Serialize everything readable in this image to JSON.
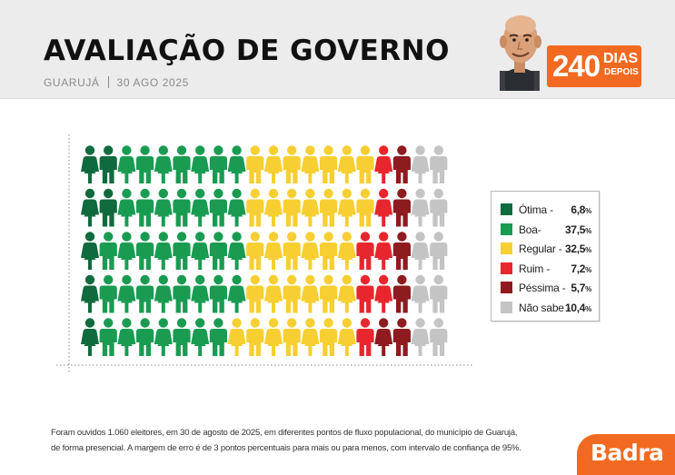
{
  "header": {
    "title": "AVALIAÇÃO DE GOVERNO",
    "location": "GUARUJÁ",
    "date": "30 AGO 2025",
    "badge": {
      "number": "240",
      "line1": "DIAS",
      "line2": "DEPOIS"
    }
  },
  "chart_data": {
    "type": "pictogram",
    "title": "AVALIAÇÃO DE GOVERNO",
    "grid": {
      "columns": 20,
      "rows": 5
    },
    "categories": [
      "Ótima",
      "Boa",
      "Regular",
      "Ruim",
      "Péssima",
      "Não sabe"
    ],
    "legend": [
      {
        "label": "Ótima -",
        "value": "6,8",
        "unit": "%",
        "pct": 6.8,
        "icons": 7,
        "color": "#0f6b3d"
      },
      {
        "label": "Boa-",
        "value": "37,5",
        "unit": "%",
        "pct": 37.5,
        "icons": 37,
        "color": "#1a9b52"
      },
      {
        "label": "Regular -",
        "value": "32,5",
        "unit": "%",
        "pct": 32.5,
        "icons": 33,
        "color": "#f7cf32"
      },
      {
        "label": "Ruim -",
        "value": "7,2",
        "unit": "%",
        "pct": 7.2,
        "icons": 7,
        "color": "#e8262d"
      },
      {
        "label": "Péssima -",
        "value": "5,7",
        "unit": "%",
        "pct": 5.7,
        "icons": 6,
        "color": "#8e1b1f"
      },
      {
        "label": "Não sabe -",
        "value": "10,4",
        "unit": "%",
        "pct": 10.4,
        "icons": 10,
        "color": "#c4c4c4"
      }
    ],
    "grid_lines": "dotted-axes",
    "legend_position": "right"
  },
  "footnote": {
    "line1": "Foram ouvidos 1.060 eleitores, em 30 de agosto de 2025, em diferentes pontos de fluxo populacional, do município de Guarujá,",
    "line2": "de forma presencial. A margem de erro é de 3 pontos percentuais para mais ou para menos, com intervalo de confiança de 95%."
  },
  "brand": {
    "name": "Badra",
    "color": "#f26a21"
  }
}
